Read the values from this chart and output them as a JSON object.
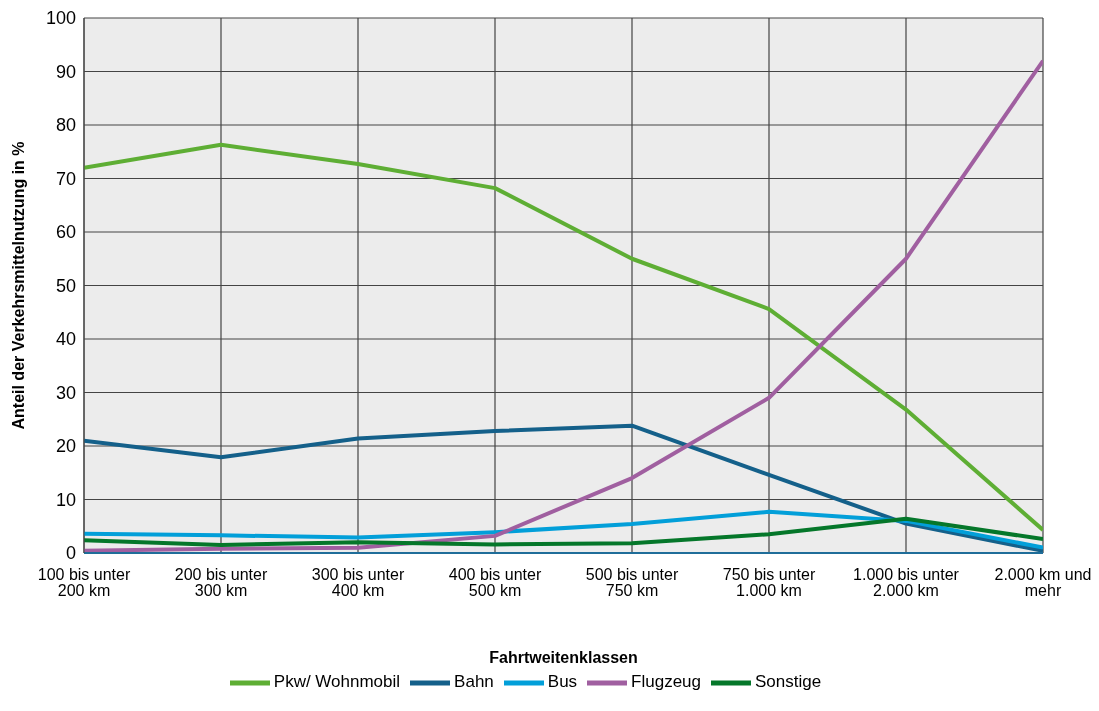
{
  "chart_data": {
    "type": "line",
    "xlabel": "Fahrtweitenklassen",
    "ylabel": "Anteil der Verkehrsmittelnutzung  in %",
    "categories": [
      "100 bis unter 200 km",
      "200 bis unter 300 km",
      "300 bis unter 400 km",
      "400 bis unter 500 km",
      "500 bis unter 750 km",
      "750 bis unter 1.000 km",
      "1.000 bis unter 2.000 km",
      "2.000 km und mehr"
    ],
    "series": [
      {
        "name": "Pkw/ Wohnmobil",
        "color": "#5eae34",
        "values": [
          72,
          76.3,
          72.7,
          68.2,
          55,
          45.6,
          26.8,
          4.3
        ]
      },
      {
        "name": "Bahn",
        "color": "#14608a",
        "values": [
          21,
          17.9,
          21.4,
          22.8,
          23.8,
          14.6,
          5.5,
          0.4
        ]
      },
      {
        "name": "Bus",
        "color": "#029fd9",
        "values": [
          3.6,
          3.3,
          2.9,
          3.9,
          5.4,
          7.7,
          6,
          1
        ]
      },
      {
        "name": "Flugzeug",
        "color": "#a05fa0",
        "values": [
          0.4,
          0.8,
          1,
          3.2,
          14,
          29,
          55,
          92
        ]
      },
      {
        "name": "Sonstige",
        "color": "#05772a",
        "values": [
          2.4,
          1.5,
          2,
          1.6,
          1.8,
          3.5,
          6.4,
          2.6
        ]
      }
    ],
    "ylim": [
      0,
      100
    ],
    "yticks": [
      0,
      10,
      20,
      30,
      40,
      50,
      60,
      70,
      80,
      90,
      100
    ],
    "grid": true,
    "legend": "bottom",
    "marker": "none",
    "line_style": "solid"
  }
}
